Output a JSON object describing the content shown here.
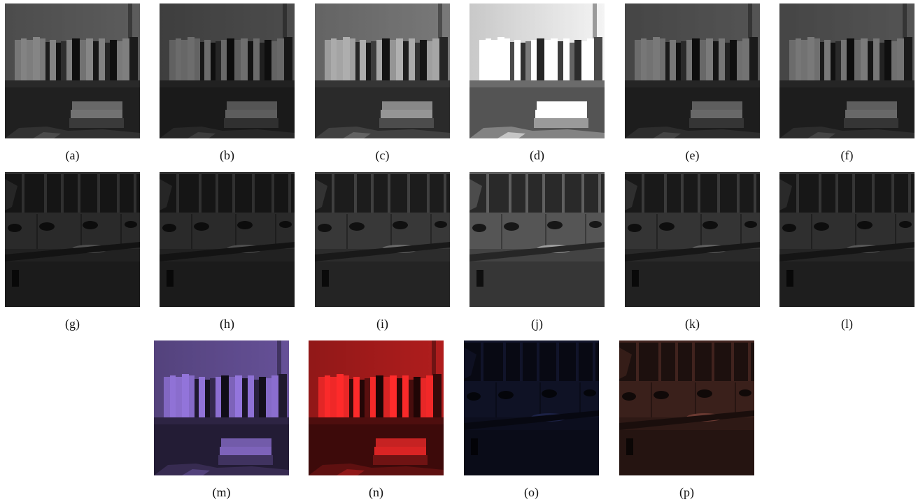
{
  "panels": [
    {
      "caption": "(a)"
    },
    {
      "caption": "(b)"
    },
    {
      "caption": "(c)"
    },
    {
      "caption": "(d)"
    },
    {
      "caption": "(e)"
    },
    {
      "caption": "(f)"
    },
    {
      "caption": "(g)"
    },
    {
      "caption": "(h)"
    },
    {
      "caption": "(i)"
    },
    {
      "caption": "(j)"
    },
    {
      "caption": "(k)"
    },
    {
      "caption": "(l)"
    },
    {
      "caption": "(m)"
    },
    {
      "caption": "(n)"
    },
    {
      "caption": "(o)"
    },
    {
      "caption": "(p)"
    }
  ]
}
